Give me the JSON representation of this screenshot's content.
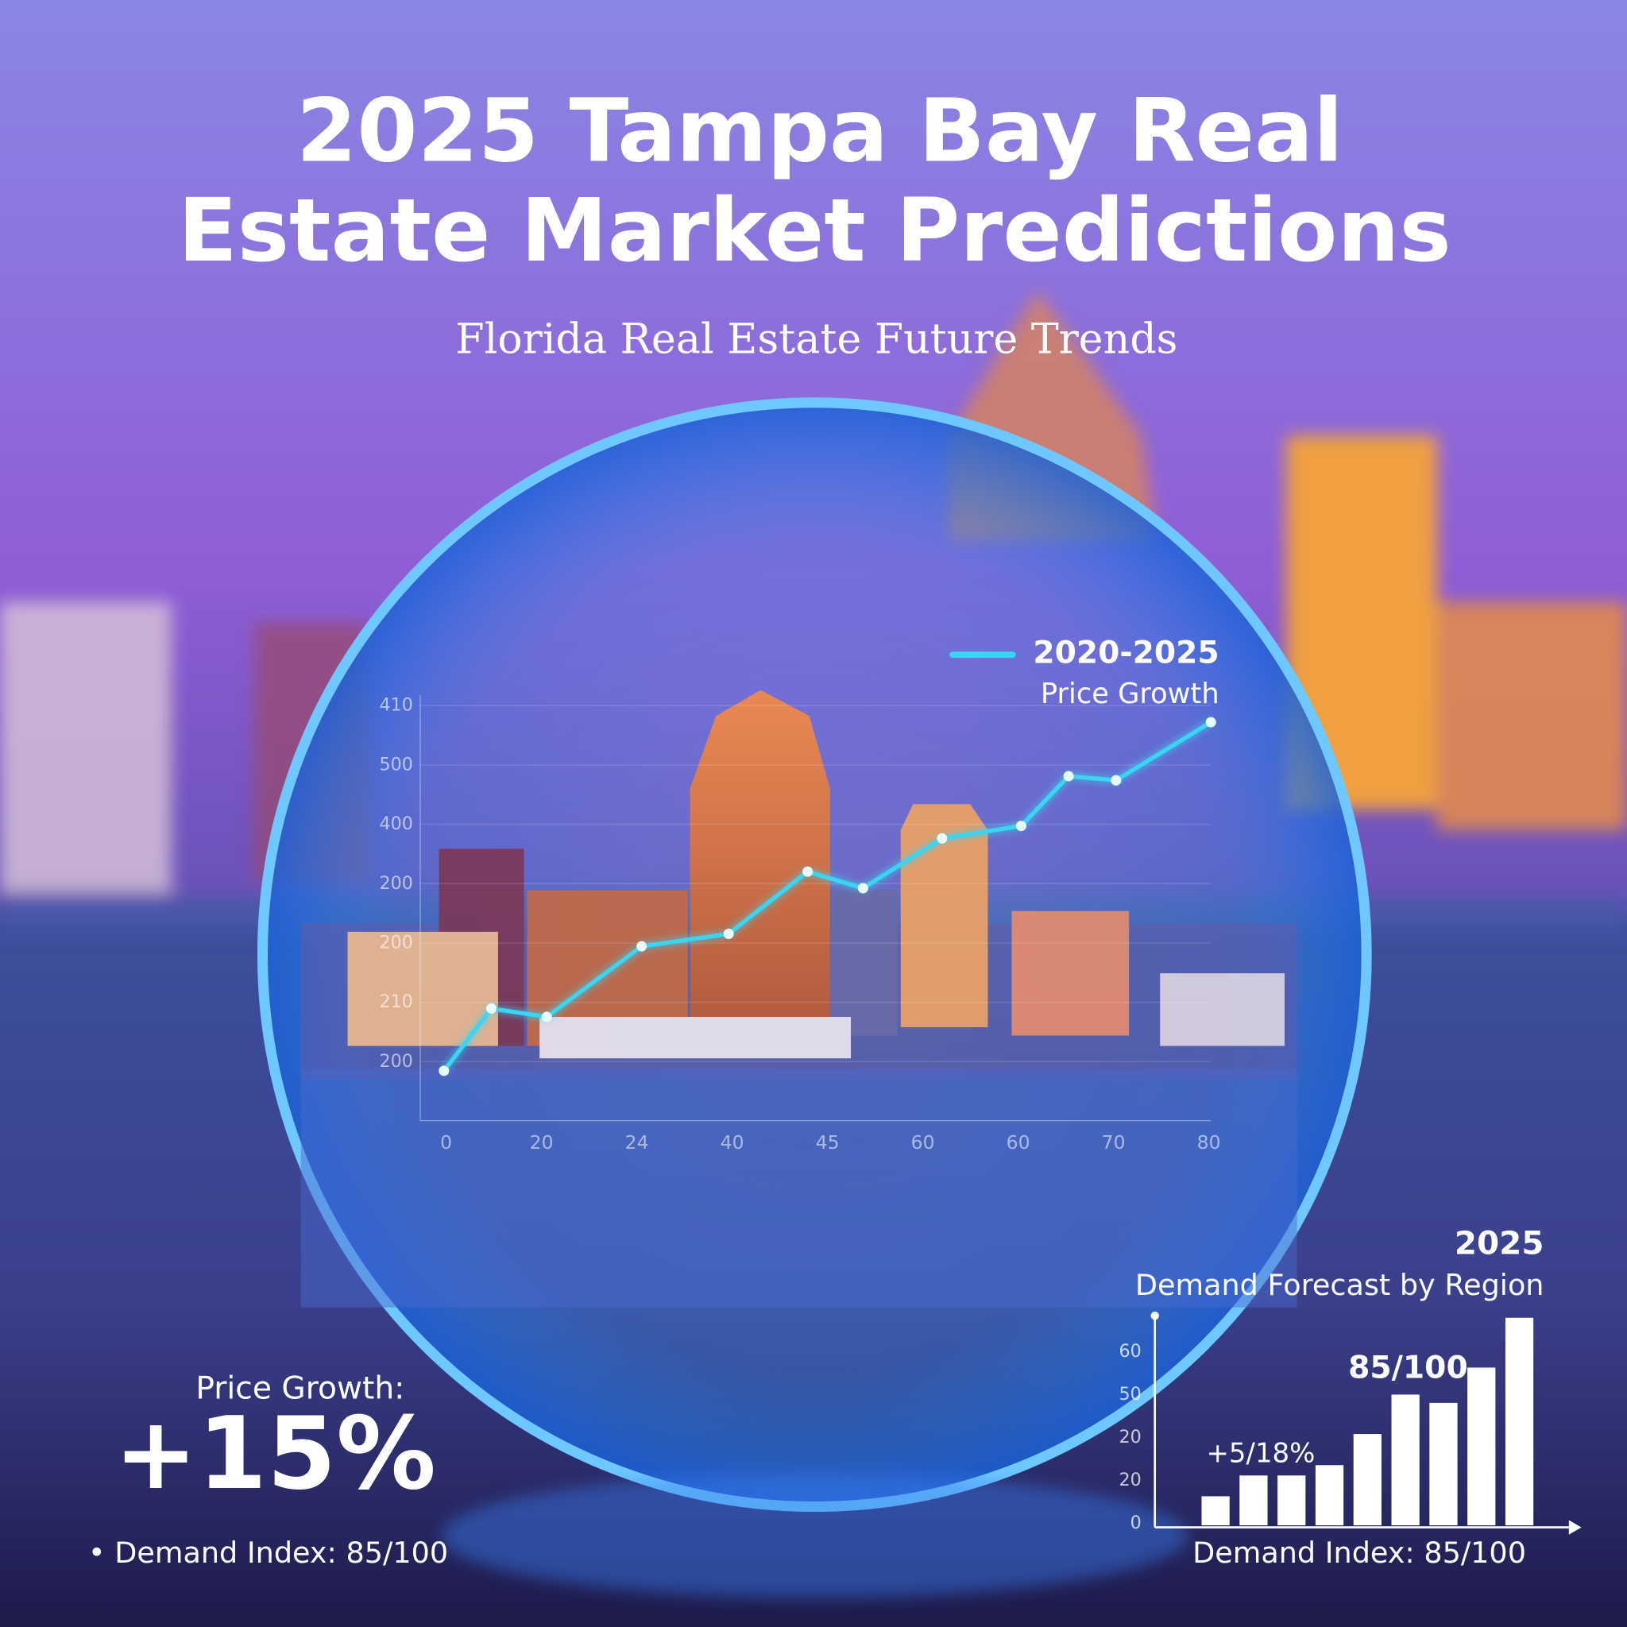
{
  "title_lines": [
    "2025 Tampa Bay Real",
    "Estate Market Predictions"
  ],
  "subtitle": "Florida Real Estate Future Trends",
  "chart_data": [
    {
      "type": "line",
      "series": [
        {
          "name": "2020-2025",
          "color": "#38d6f2",
          "values": [
            12,
            27,
            25,
            42,
            45,
            60,
            56,
            68,
            71,
            83,
            82,
            96
          ]
        }
      ],
      "legend_caption": "Price Growth",
      "x": [
        3,
        9,
        16,
        28,
        39,
        49,
        56,
        66,
        76,
        82,
        88,
        100
      ],
      "xlim": [
        0,
        100
      ],
      "ylim": [
        0,
        100
      ],
      "y_axis_labels": [
        "410",
        "500",
        "400",
        "200",
        "200",
        "210",
        "200"
      ],
      "x_axis_labels": [
        "0",
        "20",
        "24",
        "40",
        "45",
        "60",
        "60",
        "70",
        "80"
      ]
    },
    {
      "type": "bar",
      "title": "2025",
      "subtitle": "Demand Forecast by Region",
      "categories": [
        null,
        null,
        null,
        null,
        null,
        null,
        null,
        null,
        null
      ],
      "values": [
        14,
        24,
        24,
        29,
        44,
        63,
        59,
        76,
        100
      ],
      "color": "#ffffff",
      "ylim": [
        0,
        100
      ],
      "y_axis_labels": [
        "0",
        "20",
        "20",
        "50",
        "60"
      ],
      "annotations": [
        "+5/18%",
        "85/100"
      ],
      "footer": "Demand Index: 85/100"
    }
  ],
  "stats": {
    "label": "Price Growth:",
    "headline": "+15%",
    "demand": "• Demand Index: 85/100"
  }
}
